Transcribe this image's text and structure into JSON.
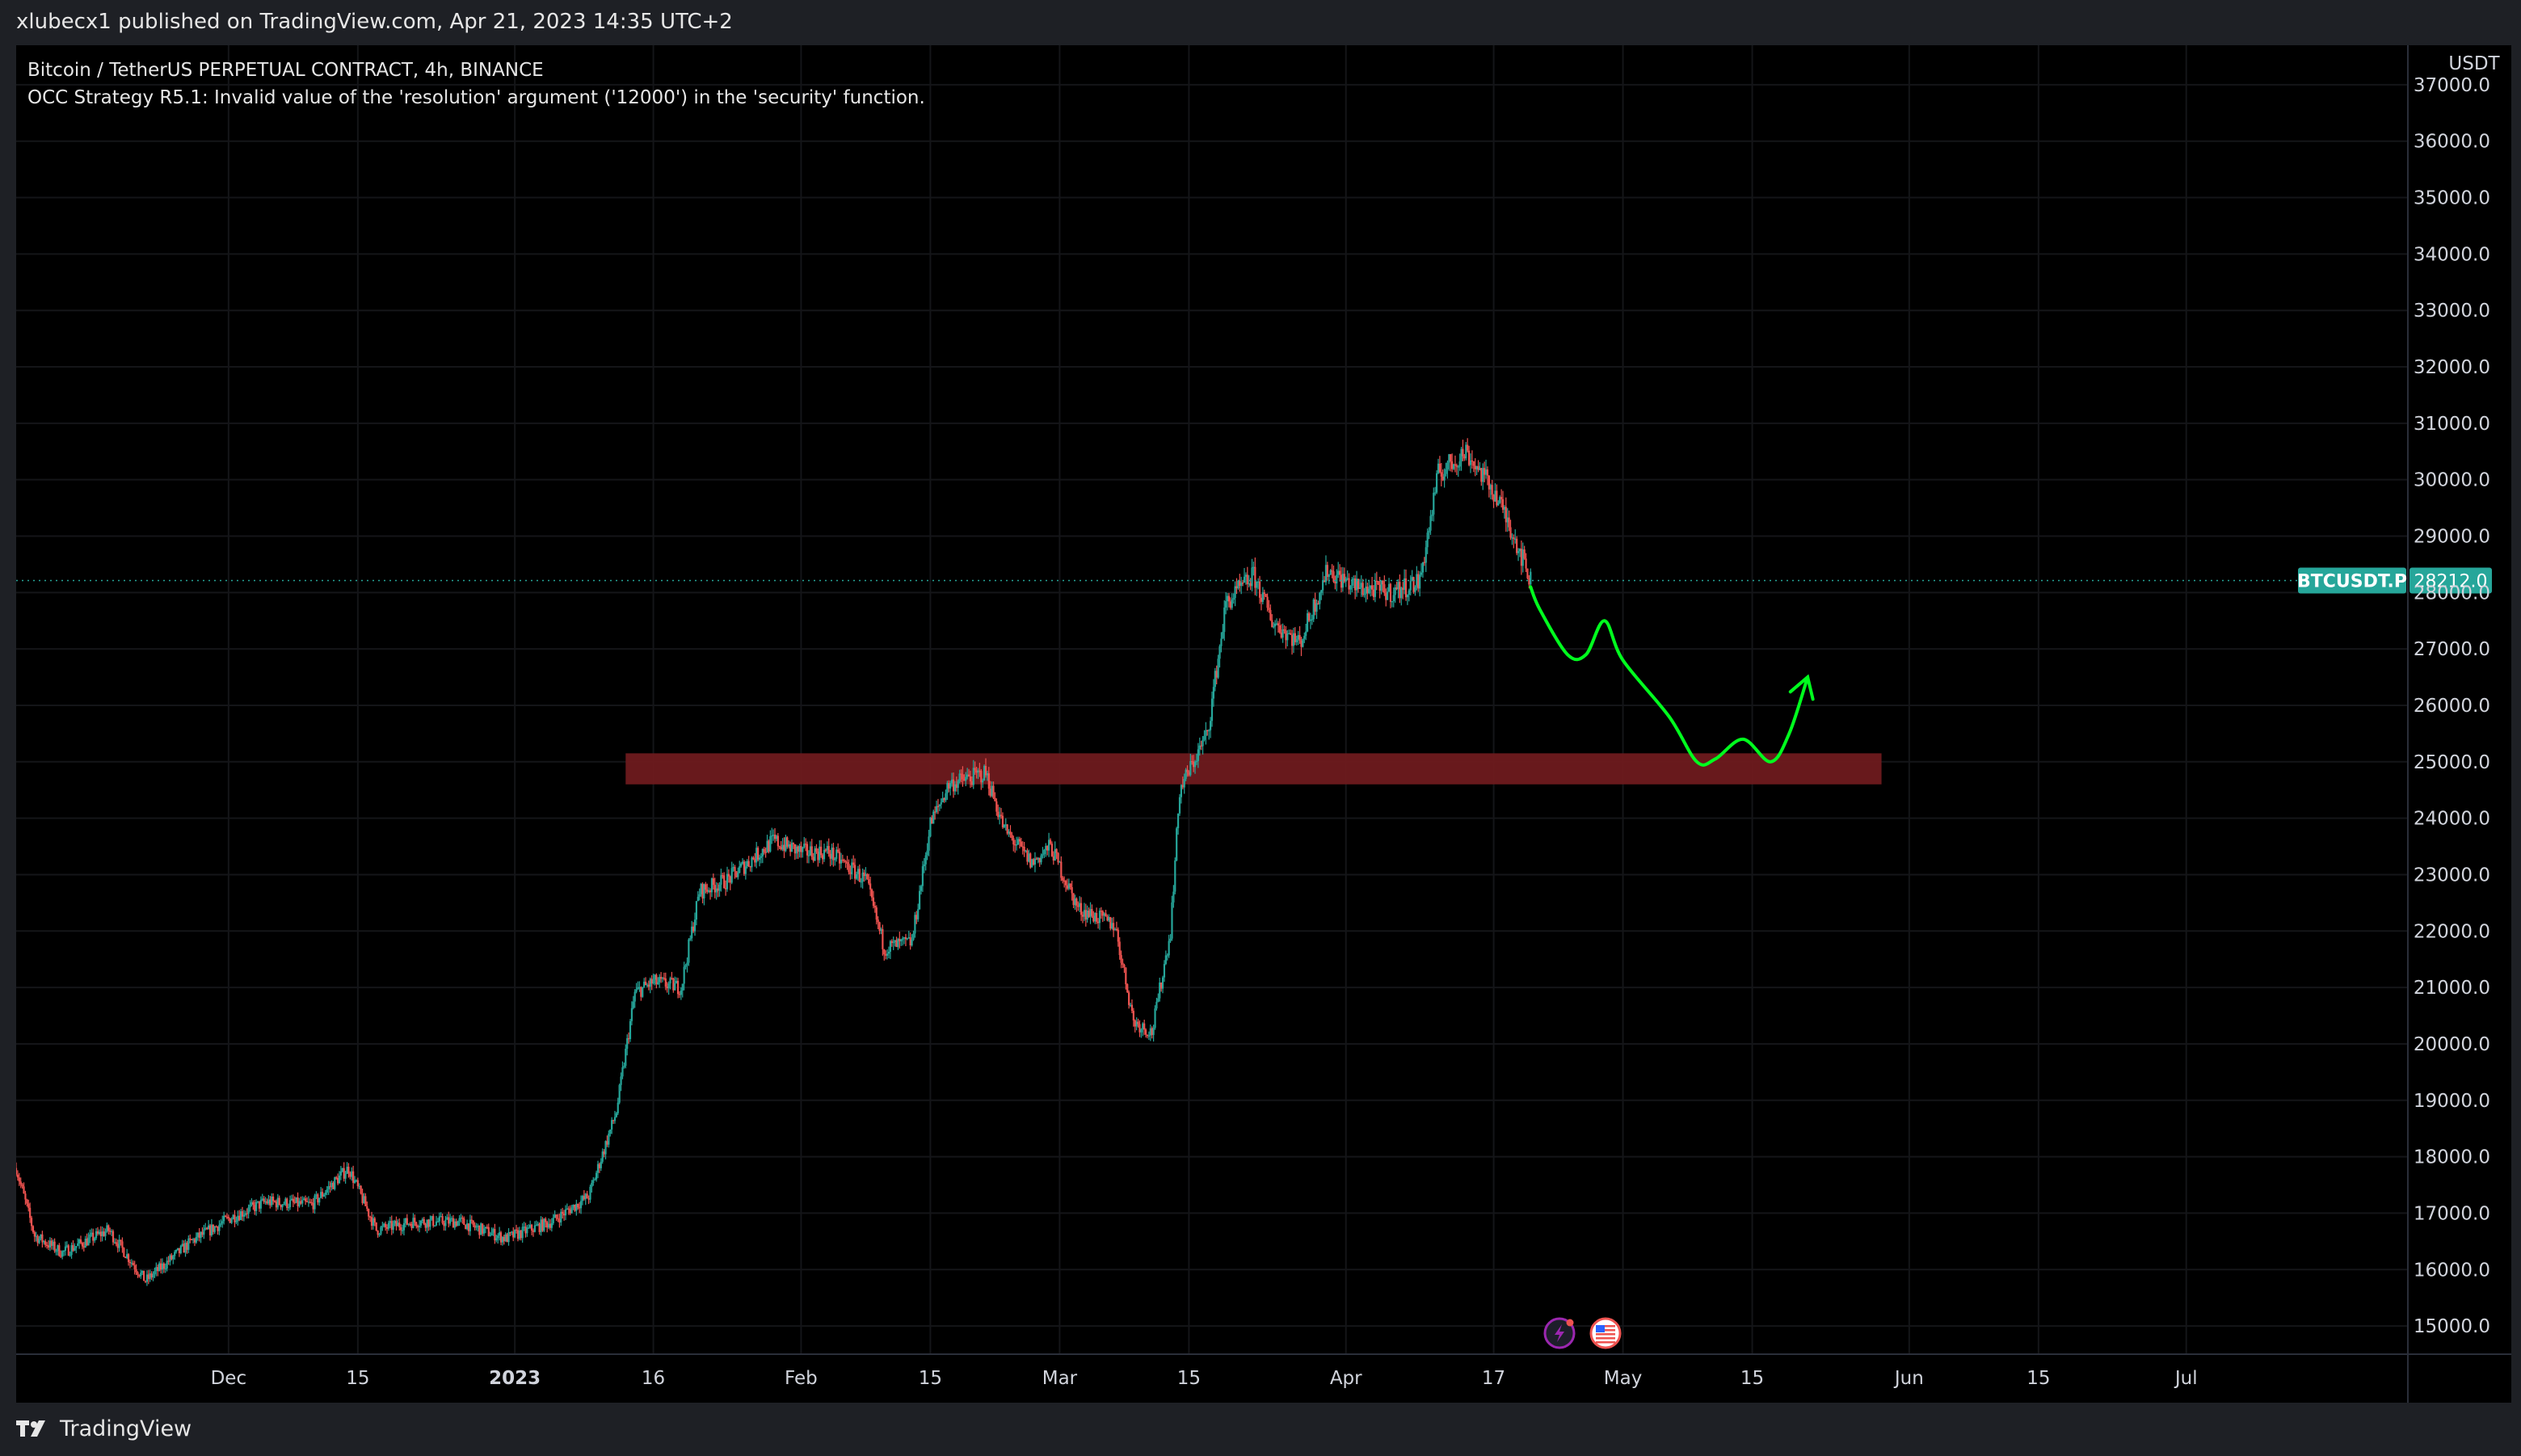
{
  "publisher_line": "xlubecx1 published on TradingView.com, Apr 21, 2023 14:35 UTC+2",
  "legend": {
    "symbol_line": "Bitcoin / TetherUS PERPETUAL CONTRACT, 4h, BINANCE",
    "error_line": "OCC Strategy R5.1: Invalid value of the 'resolution' argument ('12000') in the 'security' function."
  },
  "brand": "TradingView",
  "icons": [
    "lightning-icon",
    "us-flag-icon"
  ],
  "colors": {
    "up": "#26a69a",
    "down": "#ef5350",
    "zone": "#6e1a1e",
    "projection": "#00ff1e",
    "price_label": "#26a69a"
  },
  "chart_data": {
    "type": "candlestick",
    "symbol": "BTCUSDT.P",
    "interval": "4h",
    "currency_label": "USDT",
    "y_ticks": [
      "37000.0",
      "36000.0",
      "35000.0",
      "34000.0",
      "33000.0",
      "32000.0",
      "31000.0",
      "30000.0",
      "29000.0",
      "28000.0",
      "27000.0",
      "26000.0",
      "25000.0",
      "24000.0",
      "23000.0",
      "22000.0",
      "21000.0",
      "20000.0",
      "19000.0",
      "18000.0",
      "17000.0",
      "16000.0",
      "15000.0"
    ],
    "y_range": [
      14500,
      37700
    ],
    "x_ticks": [
      {
        "label": "Dec",
        "date": "2022-12-01",
        "bold": false
      },
      {
        "label": "15",
        "date": "2022-12-15",
        "bold": false
      },
      {
        "label": "2023",
        "date": "2023-01-01",
        "bold": true
      },
      {
        "label": "16",
        "date": "2023-01-16",
        "bold": false
      },
      {
        "label": "Feb",
        "date": "2023-02-01",
        "bold": false
      },
      {
        "label": "15",
        "date": "2023-02-15",
        "bold": false
      },
      {
        "label": "Mar",
        "date": "2023-03-01",
        "bold": false
      },
      {
        "label": "15",
        "date": "2023-03-15",
        "bold": false
      },
      {
        "label": "Apr",
        "date": "2023-04-01",
        "bold": false
      },
      {
        "label": "17",
        "date": "2023-04-17",
        "bold": false
      },
      {
        "label": "May",
        "date": "2023-05-01",
        "bold": false
      },
      {
        "label": "15",
        "date": "2023-05-15",
        "bold": false
      },
      {
        "label": "Jun",
        "date": "2023-06-01",
        "bold": false
      },
      {
        "label": "15",
        "date": "2023-06-15",
        "bold": false
      },
      {
        "label": "Jul",
        "date": "2023-07-01",
        "bold": false
      }
    ],
    "price_path": [
      {
        "date": "2022-11-08",
        "price": 17800
      },
      {
        "date": "2022-11-10",
        "price": 16600
      },
      {
        "date": "2022-11-13",
        "price": 16300
      },
      {
        "date": "2022-11-18",
        "price": 16700
      },
      {
        "date": "2022-11-22",
        "price": 15800
      },
      {
        "date": "2022-11-27",
        "price": 16500
      },
      {
        "date": "2022-12-01",
        "price": 16900
      },
      {
        "date": "2022-12-05",
        "price": 17200
      },
      {
        "date": "2022-12-10",
        "price": 17150
      },
      {
        "date": "2022-12-14",
        "price": 17800
      },
      {
        "date": "2022-12-17",
        "price": 16700
      },
      {
        "date": "2022-12-21",
        "price": 16850
      },
      {
        "date": "2022-12-26",
        "price": 16850
      },
      {
        "date": "2022-12-31",
        "price": 16550
      },
      {
        "date": "2023-01-05",
        "price": 16850
      },
      {
        "date": "2023-01-09",
        "price": 17300
      },
      {
        "date": "2023-01-12",
        "price": 18800
      },
      {
        "date": "2023-01-14",
        "price": 20900
      },
      {
        "date": "2023-01-16",
        "price": 21100
      },
      {
        "date": "2023-01-19",
        "price": 21000
      },
      {
        "date": "2023-01-21",
        "price": 22700
      },
      {
        "date": "2023-01-24",
        "price": 22900
      },
      {
        "date": "2023-01-29",
        "price": 23600
      },
      {
        "date": "2023-02-01",
        "price": 23400
      },
      {
        "date": "2023-02-04",
        "price": 23400
      },
      {
        "date": "2023-02-08",
        "price": 22900
      },
      {
        "date": "2023-02-10",
        "price": 21700
      },
      {
        "date": "2023-02-13",
        "price": 21800
      },
      {
        "date": "2023-02-15",
        "price": 23900
      },
      {
        "date": "2023-02-17",
        "price": 24600
      },
      {
        "date": "2023-02-21",
        "price": 24800
      },
      {
        "date": "2023-02-23",
        "price": 23800
      },
      {
        "date": "2023-02-26",
        "price": 23200
      },
      {
        "date": "2023-02-28",
        "price": 23500
      },
      {
        "date": "2023-03-03",
        "price": 22400
      },
      {
        "date": "2023-03-07",
        "price": 22100
      },
      {
        "date": "2023-03-09",
        "price": 20400
      },
      {
        "date": "2023-03-11",
        "price": 20200
      },
      {
        "date": "2023-03-13",
        "price": 22000
      },
      {
        "date": "2023-03-14",
        "price": 24500
      },
      {
        "date": "2023-03-17",
        "price": 25500
      },
      {
        "date": "2023-03-19",
        "price": 27800
      },
      {
        "date": "2023-03-22",
        "price": 28300
      },
      {
        "date": "2023-03-24",
        "price": 27500
      },
      {
        "date": "2023-03-27",
        "price": 27100
      },
      {
        "date": "2023-03-30",
        "price": 28400
      },
      {
        "date": "2023-04-02",
        "price": 28100
      },
      {
        "date": "2023-04-06",
        "price": 28000
      },
      {
        "date": "2023-04-09",
        "price": 28200
      },
      {
        "date": "2023-04-11",
        "price": 30100
      },
      {
        "date": "2023-04-14",
        "price": 30500
      },
      {
        "date": "2023-04-17",
        "price": 29800
      },
      {
        "date": "2023-04-19",
        "price": 29100
      },
      {
        "date": "2023-04-21",
        "price": 28212
      }
    ],
    "last_price": "28212.0",
    "last_price_value": 28212,
    "zone": {
      "start": "2023-01-13",
      "end": "2023-05-29",
      "low": 24600,
      "high": 25150
    },
    "projection_path": [
      {
        "date": "2023-04-21",
        "price": 28100
      },
      {
        "date": "2023-04-22",
        "price": 27700
      },
      {
        "date": "2023-04-25",
        "price": 26900
      },
      {
        "date": "2023-04-27",
        "price": 26900
      },
      {
        "date": "2023-04-29",
        "price": 27500
      },
      {
        "date": "2023-05-01",
        "price": 26800
      },
      {
        "date": "2023-05-06",
        "price": 25800
      },
      {
        "date": "2023-05-09",
        "price": 25000
      },
      {
        "date": "2023-05-11",
        "price": 25050
      },
      {
        "date": "2023-05-14",
        "price": 25400
      },
      {
        "date": "2023-05-17",
        "price": 25000
      },
      {
        "date": "2023-05-19",
        "price": 25500
      },
      {
        "date": "2023-05-21",
        "price": 26500
      }
    ]
  }
}
